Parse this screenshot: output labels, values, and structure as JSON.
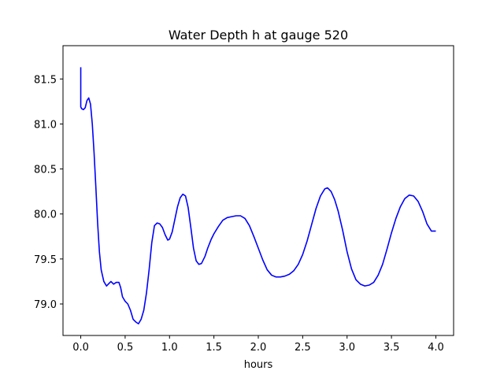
{
  "chart_data": {
    "type": "line",
    "title": "Water Depth h at gauge 520",
    "xlabel": "hours",
    "ylabel": "",
    "xlim": [
      -0.2,
      4.2
    ],
    "ylim": [
      78.65,
      81.87
    ],
    "xticks": [
      0.0,
      0.5,
      1.0,
      1.5,
      2.0,
      2.5,
      3.0,
      3.5,
      4.0
    ],
    "xtick_labels": [
      "0.0",
      "0.5",
      "1.0",
      "1.5",
      "2.0",
      "2.5",
      "3.0",
      "3.5",
      "4.0"
    ],
    "yticks": [
      79.0,
      79.5,
      80.0,
      80.5,
      81.0,
      81.5
    ],
    "ytick_labels": [
      "79.0",
      "79.5",
      "80.0",
      "80.5",
      "81.0",
      "81.5"
    ],
    "grid": false,
    "series": [
      {
        "color": "#0000ff",
        "x": [
          0.0,
          0.0,
          0.01,
          0.03,
          0.05,
          0.07,
          0.09,
          0.11,
          0.13,
          0.15,
          0.17,
          0.19,
          0.21,
          0.23,
          0.26,
          0.29,
          0.31,
          0.34,
          0.37,
          0.4,
          0.43,
          0.45,
          0.47,
          0.5,
          0.53,
          0.56,
          0.59,
          0.62,
          0.65,
          0.68,
          0.71,
          0.74,
          0.77,
          0.8,
          0.83,
          0.86,
          0.89,
          0.92,
          0.95,
          0.98,
          1.0,
          1.03,
          1.06,
          1.09,
          1.12,
          1.15,
          1.18,
          1.21,
          1.24,
          1.27,
          1.3,
          1.33,
          1.36,
          1.4,
          1.43,
          1.47,
          1.5,
          1.55,
          1.6,
          1.65,
          1.7,
          1.75,
          1.8,
          1.85,
          1.9,
          1.95,
          2.0,
          2.05,
          2.1,
          2.15,
          2.2,
          2.25,
          2.3,
          2.35,
          2.4,
          2.45,
          2.5,
          2.55,
          2.6,
          2.65,
          2.7,
          2.75,
          2.78,
          2.82,
          2.86,
          2.9,
          2.95,
          3.0,
          3.05,
          3.1,
          3.15,
          3.2,
          3.25,
          3.3,
          3.35,
          3.4,
          3.45,
          3.5,
          3.55,
          3.6,
          3.65,
          3.7,
          3.75,
          3.8,
          3.85,
          3.9,
          3.95,
          4.0
        ],
        "y": [
          81.63,
          81.19,
          81.17,
          81.16,
          81.18,
          81.26,
          81.29,
          81.22,
          81.0,
          80.68,
          80.3,
          79.9,
          79.58,
          79.38,
          79.25,
          79.2,
          79.22,
          79.25,
          79.22,
          79.24,
          79.24,
          79.18,
          79.08,
          79.03,
          79.0,
          78.93,
          78.83,
          78.8,
          78.78,
          78.83,
          78.93,
          79.12,
          79.38,
          79.68,
          79.87,
          79.9,
          79.89,
          79.85,
          79.77,
          79.71,
          79.72,
          79.8,
          79.94,
          80.08,
          80.18,
          80.22,
          80.2,
          80.07,
          79.85,
          79.62,
          79.48,
          79.44,
          79.45,
          79.53,
          79.62,
          79.72,
          79.78,
          79.86,
          79.93,
          79.96,
          79.97,
          79.98,
          79.98,
          79.95,
          79.87,
          79.75,
          79.62,
          79.49,
          79.38,
          79.32,
          79.3,
          79.3,
          79.31,
          79.33,
          79.37,
          79.44,
          79.55,
          79.7,
          79.88,
          80.06,
          80.2,
          80.28,
          80.29,
          80.25,
          80.16,
          80.03,
          79.82,
          79.58,
          79.39,
          79.27,
          79.22,
          79.2,
          79.21,
          79.24,
          79.32,
          79.44,
          79.61,
          79.79,
          79.95,
          80.08,
          80.17,
          80.21,
          80.2,
          80.14,
          80.03,
          79.89,
          79.81,
          79.81
        ]
      }
    ]
  }
}
